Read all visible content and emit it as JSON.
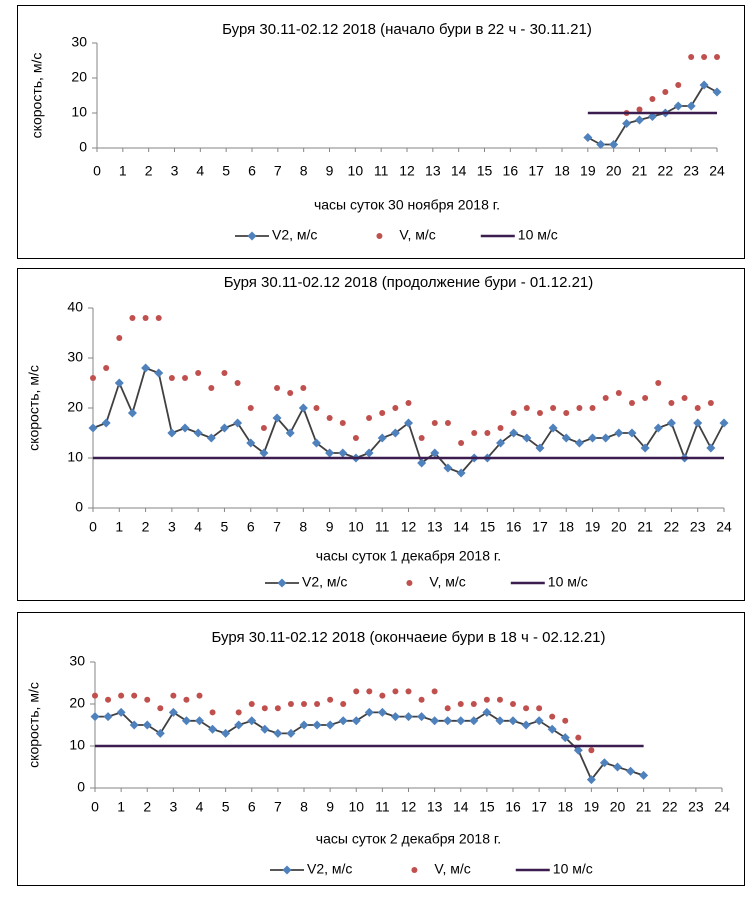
{
  "chart_data": [
    {
      "type": "line",
      "title": "Буря 30.11-02.12 2018 (начало бури в 22 ч - 30.11.21)",
      "x_label": "часы суток 30 ноября 2018 г.",
      "y_label": "скорость, м/с",
      "xlim": [
        0,
        24
      ],
      "xticks": [
        0,
        1,
        2,
        3,
        4,
        5,
        6,
        7,
        8,
        9,
        10,
        11,
        12,
        13,
        14,
        15,
        16,
        17,
        18,
        19,
        20,
        21,
        22,
        23,
        24
      ],
      "ylim": [
        0,
        30
      ],
      "yticks": [
        0,
        10,
        20,
        30
      ],
      "legend": "bottom",
      "series": [
        {
          "name": "V2, м/с",
          "style": "line-marker",
          "color": "#404040",
          "marker_color": "#4f81bd",
          "x": [
            19,
            19.5,
            20,
            20.5,
            21,
            21.5,
            22,
            22.5,
            23,
            23.5,
            24
          ],
          "values": [
            3,
            1,
            1,
            7,
            8,
            9,
            10,
            12,
            12,
            18,
            16
          ]
        },
        {
          "name": "V, м/с",
          "style": "scatter",
          "color": "#c0504d",
          "x": [
            20.5,
            21,
            21.5,
            22,
            22.5,
            23,
            23.5,
            24
          ],
          "values": [
            10,
            11,
            14,
            16,
            18,
            26,
            26,
            26
          ]
        },
        {
          "name": "10 м/с",
          "style": "line",
          "color": "#3b1e4f",
          "x": [
            19,
            24
          ],
          "values": [
            10,
            10
          ]
        }
      ]
    },
    {
      "type": "line",
      "title": "Буря 30.11-02.12 2018 (продолжение  бури - 01.12.21)",
      "x_label": "часы суток 1 декабря 2018 г.",
      "y_label": "скорость, м/с",
      "xlim": [
        0,
        24
      ],
      "xticks": [
        0,
        1,
        2,
        3,
        4,
        5,
        6,
        7,
        8,
        9,
        10,
        11,
        12,
        13,
        14,
        15,
        16,
        17,
        18,
        19,
        20,
        21,
        22,
        23,
        24
      ],
      "ylim": [
        0,
        40
      ],
      "yticks": [
        0,
        10,
        20,
        30,
        40
      ],
      "legend": "bottom",
      "series": [
        {
          "name": "V2, м/с",
          "style": "line-marker",
          "color": "#404040",
          "marker_color": "#4f81bd",
          "x": [
            0,
            0.5,
            1,
            1.5,
            2,
            2.5,
            3,
            3.5,
            4,
            4.5,
            5,
            5.5,
            6,
            6.5,
            7,
            7.5,
            8,
            8.5,
            9,
            9.5,
            10,
            10.5,
            11,
            11.5,
            12,
            12.5,
            13,
            13.5,
            14,
            14.5,
            15,
            15.5,
            16,
            16.5,
            17,
            17.5,
            18,
            18.5,
            19,
            19.5,
            20,
            20.5,
            21,
            21.5,
            22,
            22.5,
            23,
            23.5,
            24
          ],
          "values": [
            16,
            17,
            25,
            19,
            28,
            27,
            15,
            16,
            15,
            14,
            16,
            17,
            13,
            11,
            18,
            15,
            20,
            13,
            11,
            11,
            10,
            11,
            14,
            15,
            17,
            9,
            11,
            8,
            7,
            10,
            10,
            13,
            15,
            14,
            12,
            16,
            14,
            13,
            14,
            14,
            15,
            15,
            12,
            16,
            17,
            10,
            17,
            12,
            17
          ]
        },
        {
          "name": "V, м/с",
          "style": "scatter",
          "color": "#c0504d",
          "x": [
            0,
            0.5,
            1,
            1.5,
            2,
            2.5,
            3,
            3.5,
            4,
            4.5,
            5,
            5.5,
            6,
            6.5,
            7,
            7.5,
            8,
            8.5,
            9,
            9.5,
            10,
            10.5,
            11,
            11.5,
            12,
            12.5,
            13,
            13.5,
            14,
            14.5,
            15,
            15.5,
            16,
            16.5,
            17,
            17.5,
            18,
            18.5,
            19,
            19.5,
            20,
            20.5,
            21,
            21.5,
            22,
            22.5,
            23,
            23.5
          ],
          "values": [
            26,
            28,
            34,
            38,
            38,
            38,
            26,
            26,
            27,
            24,
            27,
            25,
            20,
            16,
            24,
            23,
            24,
            20,
            18,
            17,
            14,
            18,
            19,
            20,
            21,
            14,
            17,
            17,
            13,
            15,
            15,
            16,
            19,
            20,
            19,
            20,
            19,
            20,
            20,
            22,
            23,
            21,
            22,
            25,
            21,
            22,
            20,
            21
          ]
        },
        {
          "name": "10 м/с",
          "style": "line",
          "color": "#3b1e4f",
          "x": [
            0,
            24
          ],
          "values": [
            10,
            10
          ]
        }
      ]
    },
    {
      "type": "line",
      "title": "Буря 30.11-02.12 2018 (окончаеие  бури в 18 ч - 02.12.21)",
      "x_label": "часы суток  2  декабря 2018 г.",
      "y_label": "скорость, м/с",
      "xlim": [
        0,
        24
      ],
      "xticks": [
        0,
        1,
        2,
        3,
        4,
        5,
        6,
        7,
        8,
        9,
        10,
        11,
        12,
        13,
        14,
        15,
        16,
        17,
        18,
        19,
        20,
        21,
        22,
        23,
        24
      ],
      "ylim": [
        0,
        30
      ],
      "yticks": [
        0,
        10,
        20,
        30
      ],
      "legend": "bottom",
      "series": [
        {
          "name": "V2, м/с",
          "style": "line-marker",
          "color": "#404040",
          "marker_color": "#4f81bd",
          "x": [
            0,
            0.5,
            1,
            1.5,
            2,
            2.5,
            3,
            3.5,
            4,
            4.5,
            5,
            5.5,
            6,
            6.5,
            7,
            7.5,
            8,
            8.5,
            9,
            9.5,
            10,
            10.5,
            11,
            11.5,
            12,
            12.5,
            13,
            13.5,
            14,
            14.5,
            15,
            15.5,
            16,
            16.5,
            17,
            17.5,
            18,
            18.5,
            19,
            19.5,
            20,
            20.5,
            21
          ],
          "values": [
            17,
            17,
            18,
            15,
            15,
            13,
            18,
            16,
            16,
            14,
            13,
            15,
            16,
            14,
            13,
            13,
            15,
            15,
            15,
            16,
            16,
            18,
            18,
            17,
            17,
            17,
            16,
            16,
            16,
            16,
            18,
            16,
            16,
            15,
            16,
            14,
            12,
            9,
            2,
            6,
            5,
            4,
            3
          ]
        },
        {
          "name": "V, м/с",
          "style": "scatter",
          "color": "#c0504d",
          "x": [
            0,
            0.5,
            1,
            1.5,
            2,
            2.5,
            3,
            3.5,
            4,
            4.5,
            5.5,
            6,
            6.5,
            7,
            7.5,
            8,
            8.5,
            9,
            9.5,
            10,
            10.5,
            11,
            11.5,
            12,
            12.5,
            13,
            13.5,
            14,
            14.5,
            15,
            15.5,
            16,
            16.5,
            17,
            17.5,
            18,
            18.5,
            19
          ],
          "values": [
            22,
            21,
            22,
            22,
            21,
            19,
            22,
            21,
            22,
            18,
            18,
            20,
            19,
            19,
            20,
            20,
            20,
            21,
            20,
            23,
            23,
            22,
            23,
            23,
            21,
            23,
            19,
            20,
            20,
            21,
            21,
            20,
            19,
            19,
            17,
            16,
            12,
            9
          ]
        },
        {
          "name": "10 м/с",
          "style": "line",
          "color": "#3b1e4f",
          "x": [
            0,
            21
          ],
          "values": [
            10,
            10
          ]
        }
      ]
    }
  ]
}
